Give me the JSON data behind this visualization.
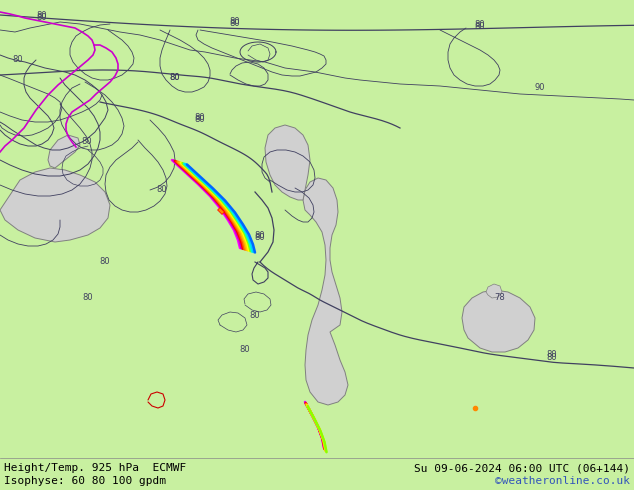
{
  "title_left": "Height/Temp. 925 hPa  ECMWF",
  "title_right": "Su 09-06-2024 06:00 UTC (06+144)",
  "subtitle_left": "Isophyse: 60 80 100 gpdm",
  "subtitle_right": "©weatheronline.co.uk",
  "bg_color": "#c8f0a0",
  "water_color": "#d0d0d0",
  "water_edge": "#808080",
  "contour_color": "#404060",
  "isohypse_color": "#404060",
  "magenta_color": "#cc00cc",
  "text_color": "#000000",
  "watermark_color": "#3355bb",
  "bar_color": "#c8f0a0",
  "temp_colors": [
    "#ff00ff",
    "#cc00cc",
    "#ff0000",
    "#ff5500",
    "#ff9900",
    "#ffcc00",
    "#ffff00",
    "#88ff00",
    "#00ffcc",
    "#00ccff",
    "#0066ff"
  ],
  "fig_width": 6.34,
  "fig_height": 4.9,
  "dpi": 100
}
